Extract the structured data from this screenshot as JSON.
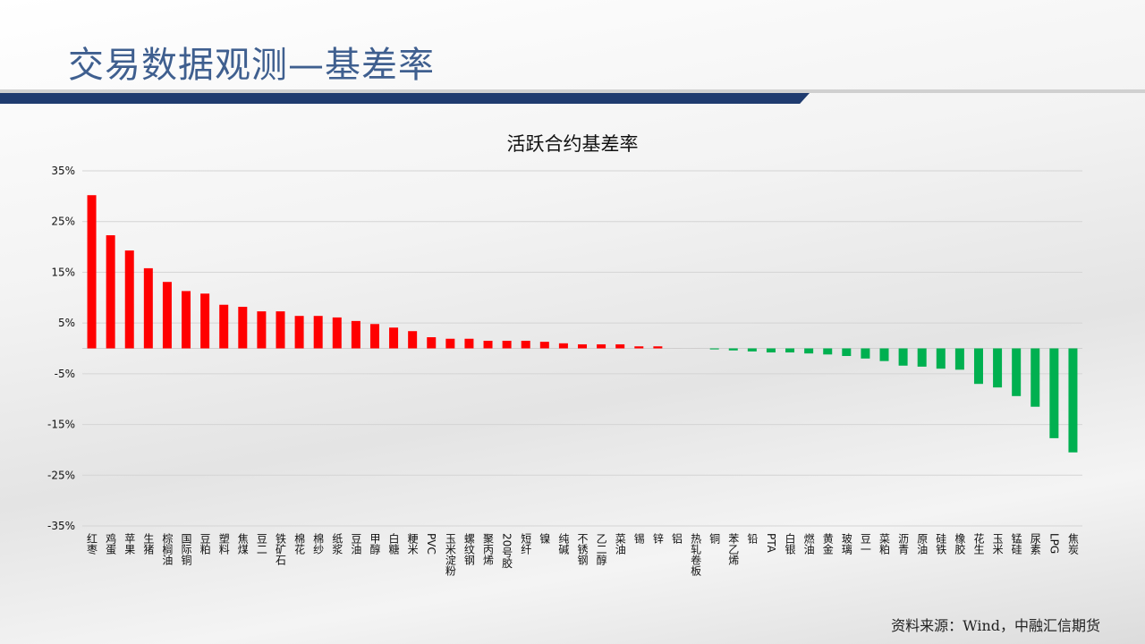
{
  "page": {
    "title": "交易数据观测—基差率",
    "source": "资料来源：Wind，中融汇信期货",
    "header_color": "#1f3b6f"
  },
  "chart_data": {
    "type": "bar",
    "title": "活跃合约基差率",
    "xlabel": "",
    "ylabel": "",
    "ylim": [
      -35,
      35
    ],
    "yticks": [
      "35%",
      "25%",
      "15%",
      "5%",
      "-5%",
      "-15%",
      "-25%",
      "-35%"
    ],
    "ytick_values": [
      35,
      25,
      15,
      5,
      -5,
      -15,
      -25,
      -35
    ],
    "grid": true,
    "positive_color": "#ff0000",
    "negative_color": "#00b050",
    "categories": [
      "红枣",
      "鸡蛋",
      "苹果",
      "生猪",
      "棕榈油",
      "国际铜",
      "豆粕",
      "塑料",
      "焦煤",
      "豆二",
      "铁矿石",
      "棉花",
      "棉纱",
      "纸浆",
      "豆油",
      "甲醇",
      "白糖",
      "粳米",
      "PVC",
      "玉米淀粉",
      "螺纹钢",
      "聚丙烯",
      "20号胶",
      "短纤",
      "镍",
      "纯碱",
      "不锈钢",
      "乙二醇",
      "菜油",
      "锡",
      "锌",
      "铝",
      "热轧卷板",
      "铜",
      "苯乙烯",
      "铅",
      "PTA",
      "白银",
      "燃油",
      "黄金",
      "玻璃",
      "豆一",
      "菜粕",
      "沥青",
      "原油",
      "硅铁",
      "橡胶",
      "花生",
      "玉米",
      "锰硅",
      "尿素",
      "LPG",
      "焦炭"
    ],
    "values": [
      30.2,
      22.3,
      19.3,
      15.8,
      13.1,
      11.3,
      10.8,
      8.6,
      8.2,
      7.3,
      7.3,
      6.4,
      6.4,
      6.1,
      5.4,
      4.8,
      4.1,
      3.4,
      2.2,
      1.9,
      1.9,
      1.5,
      1.5,
      1.5,
      1.3,
      1.0,
      0.8,
      0.8,
      0.8,
      0.4,
      0.4,
      0.0,
      0.0,
      -0.2,
      -0.4,
      -0.6,
      -0.8,
      -0.8,
      -1.0,
      -1.2,
      -1.5,
      -2.0,
      -2.5,
      -3.4,
      -3.6,
      -4.0,
      -4.2,
      -7.0,
      -7.7,
      -9.4,
      -11.5,
      -17.7,
      -20.5
    ]
  }
}
